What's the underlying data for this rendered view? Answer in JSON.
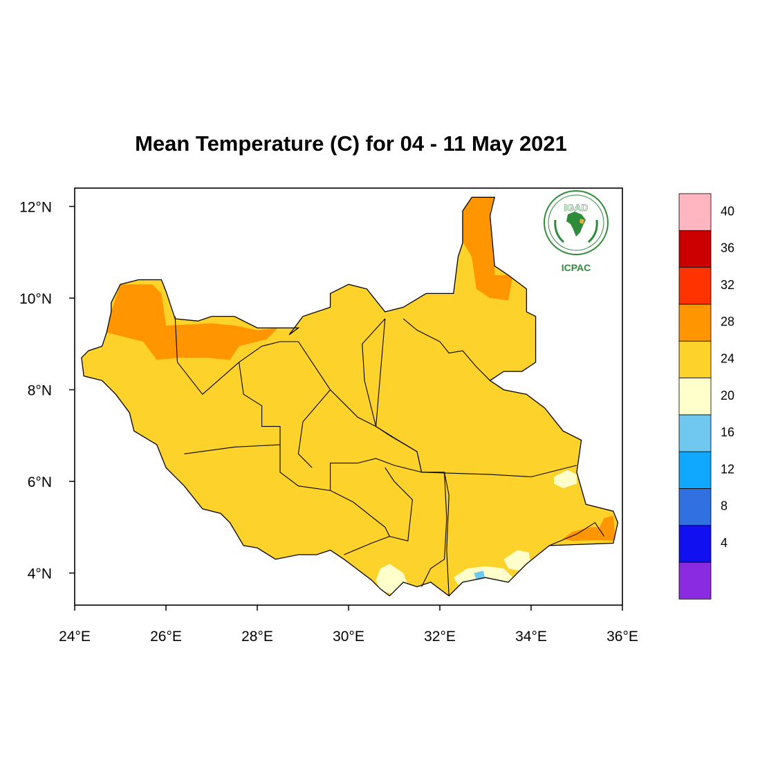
{
  "title": "Mean Temperature (C) for 04 - 11 May 2021",
  "logo": {
    "top_text": "IGAD",
    "bottom_text": "ICPAC",
    "ring_color": "#2e8b3a"
  },
  "chart_data": {
    "type": "heatmap",
    "title": "Mean Temperature (C) for 04 - 11 May 2021",
    "xlim": [
      24,
      36
    ],
    "ylim": [
      3.3,
      12.4
    ],
    "x_ticks": [
      {
        "value": 24,
        "label": "24°E"
      },
      {
        "value": 26,
        "label": "26°E"
      },
      {
        "value": 28,
        "label": "28°E"
      },
      {
        "value": 30,
        "label": "30°E"
      },
      {
        "value": 32,
        "label": "32°E"
      },
      {
        "value": 34,
        "label": "34°E"
      },
      {
        "value": 36,
        "label": "36°E"
      }
    ],
    "y_ticks": [
      {
        "value": 4,
        "label": "4°N"
      },
      {
        "value": 6,
        "label": "6°N"
      },
      {
        "value": 8,
        "label": "8°N"
      },
      {
        "value": 10,
        "label": "10°N"
      },
      {
        "value": 12,
        "label": "12°N"
      }
    ],
    "colorbar": {
      "colors": [
        "#8a2be2",
        "#1010f0",
        "#3070e0",
        "#10a8ff",
        "#70c8f0",
        "#ffffcc",
        "#fdd22a",
        "#ff9500",
        "#ff3300",
        "#cc0000",
        "#ffb6c1"
      ],
      "labels": [
        "4",
        "8",
        "12",
        "16",
        "20",
        "24",
        "28",
        "32",
        "36",
        "40"
      ]
    },
    "regions": [
      {
        "name": "28-32",
        "color": "#ff9500",
        "points": [
          [
            25.0,
            10.3
          ],
          [
            25.7,
            10.3
          ],
          [
            25.9,
            10.1
          ],
          [
            26.0,
            9.4
          ],
          [
            27.0,
            9.45
          ],
          [
            27.5,
            9.4
          ],
          [
            28.0,
            9.3
          ],
          [
            28.45,
            9.35
          ],
          [
            28.2,
            9.1
          ],
          [
            27.6,
            8.95
          ],
          [
            27.4,
            8.65
          ],
          [
            26.9,
            8.7
          ],
          [
            26.3,
            8.7
          ],
          [
            25.8,
            8.65
          ],
          [
            25.5,
            9.05
          ],
          [
            24.7,
            9.25
          ],
          [
            24.8,
            9.7
          ]
        ]
      },
      {
        "name": "28-32",
        "color": "#ff9500",
        "points": [
          [
            32.4,
            11.8
          ],
          [
            32.6,
            12.2
          ],
          [
            33.2,
            12.2
          ],
          [
            33.1,
            11.9
          ],
          [
            33.2,
            10.9
          ],
          [
            33.2,
            10.5
          ],
          [
            33.6,
            10.5
          ],
          [
            33.5,
            9.95
          ],
          [
            33.1,
            10.0
          ],
          [
            32.8,
            10.2
          ],
          [
            32.7,
            10.9
          ],
          [
            32.4,
            11.4
          ]
        ]
      },
      {
        "name": "28-32",
        "color": "#ff9500",
        "points": [
          [
            34.9,
            4.9
          ],
          [
            35.3,
            5.0
          ],
          [
            35.5,
            5.0
          ],
          [
            35.6,
            5.2
          ],
          [
            35.8,
            5.25
          ],
          [
            35.85,
            4.7
          ],
          [
            35.4,
            4.72
          ],
          [
            34.9,
            4.7
          ],
          [
            34.7,
            4.75
          ]
        ]
      },
      {
        "name": "20-24",
        "color": "#ffffcc",
        "points": [
          [
            34.5,
            6.1
          ],
          [
            34.8,
            6.25
          ],
          [
            35.0,
            6.15
          ],
          [
            35.0,
            5.95
          ],
          [
            34.7,
            5.85
          ],
          [
            34.5,
            5.95
          ]
        ]
      },
      {
        "name": "20-24",
        "color": "#ffffcc",
        "points": [
          [
            30.6,
            3.85
          ],
          [
            30.7,
            4.1
          ],
          [
            30.9,
            4.2
          ],
          [
            31.2,
            4.0
          ],
          [
            31.3,
            3.75
          ],
          [
            31.0,
            3.55
          ],
          [
            30.7,
            3.6
          ]
        ]
      },
      {
        "name": "20-24",
        "color": "#ffffcc",
        "points": [
          [
            32.3,
            3.9
          ],
          [
            32.6,
            4.1
          ],
          [
            33.0,
            4.15
          ],
          [
            33.4,
            4.1
          ],
          [
            33.6,
            3.9
          ],
          [
            33.4,
            3.75
          ],
          [
            32.9,
            3.7
          ],
          [
            32.4,
            3.75
          ]
        ]
      },
      {
        "name": "20-24",
        "color": "#ffffcc",
        "points": [
          [
            33.4,
            4.3
          ],
          [
            33.7,
            4.5
          ],
          [
            33.95,
            4.45
          ],
          [
            34.0,
            4.15
          ],
          [
            33.75,
            4.05
          ],
          [
            33.5,
            4.1
          ]
        ]
      },
      {
        "name": "16-20",
        "color": "#70c8f0",
        "points": [
          [
            32.75,
            4.0
          ],
          [
            32.95,
            4.05
          ],
          [
            33.0,
            3.85
          ],
          [
            32.8,
            3.85
          ]
        ]
      }
    ]
  }
}
